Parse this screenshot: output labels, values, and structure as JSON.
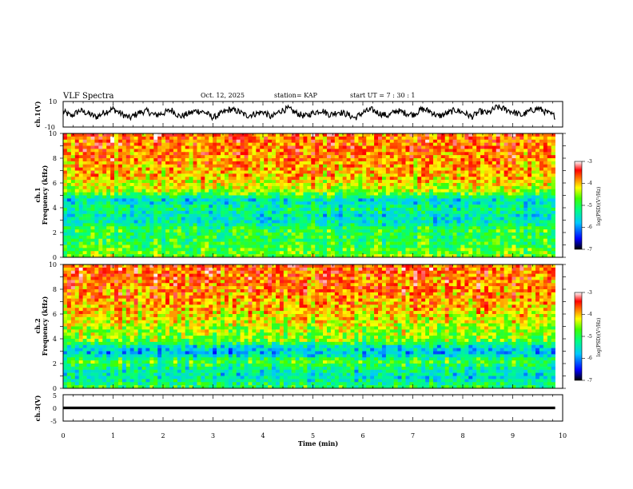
{
  "header": {
    "title": "VLF Spectra",
    "date": "Oct. 12, 2025",
    "station": "station= KAP",
    "start": "start  UT =   7 : 30 : 1"
  },
  "colors": {
    "trace": "#000000",
    "frame": "#000000",
    "colormap": [
      "#000000",
      "#0000ff",
      "#00c8ff",
      "#00ff80",
      "#40ff00",
      "#ffff00",
      "#ff8000",
      "#ff0000",
      "#ffffff"
    ]
  },
  "chart_data": [
    {
      "type": "line",
      "name": "ch1-waveform",
      "ylabel": "ch.1(V)",
      "ylim": [
        -10,
        10
      ],
      "yticks": [
        "10",
        "-10"
      ],
      "xlim": [
        0,
        10
      ],
      "sample_values": [
        2.1,
        -1.4,
        3.0,
        0.6,
        -2.2,
        1.8,
        4.1,
        0.2,
        -3.0,
        1.1,
        2.6,
        -0.8,
        0.9,
        3.4,
        -1.9,
        0.4,
        2.8,
        1.5,
        -2.6,
        0.7,
        3.8,
        2.2,
        -1.1,
        0.3,
        1.9,
        -2.4,
        2.5,
        4.4,
        0.8,
        -1.6,
        1.2,
        3.1,
        -0.5,
        2.0,
        0.1,
        -2.9,
        1.6,
        3.6,
        0.5,
        -1.2,
        2.9,
        1.0,
        -0.3,
        4.0,
        2.4,
        -1.7,
        0.6,
        3.3,
        1.4,
        -2.0,
        2.2,
        0.9,
        5.6,
        3.9,
        1.7,
        -0.9,
        2.7,
        4.6,
        1.3,
        -1.5
      ]
    },
    {
      "type": "heatmap",
      "name": "ch1-spectrogram",
      "ylabel_line1": "ch.1",
      "ylabel_line2": "Frequency (kHz)",
      "yticks": [
        "0",
        "2",
        "4",
        "6",
        "8",
        "10"
      ],
      "ylim": [
        0,
        10
      ],
      "xlim": [
        0,
        10
      ],
      "data_end_min": 9.85,
      "colorbar": {
        "label": "log(PSD)(V²/Hz)",
        "ticks": [
          "-3",
          "-4",
          "-5",
          "-6",
          "-7"
        ],
        "range": [
          -7,
          -3
        ]
      },
      "band_profile_freq_khz": [
        0.2,
        0.8,
        1.5,
        2.2,
        2.8,
        3.3,
        3.9,
        4.6,
        5.3,
        6.5,
        8.0,
        9.5
      ],
      "band_profile_logpsd": [
        -4.6,
        -4.8,
        -5.0,
        -4.9,
        -5.4,
        -5.5,
        -5.2,
        -5.6,
        -4.5,
        -4.0,
        -3.8,
        -3.7
      ]
    },
    {
      "type": "heatmap",
      "name": "ch2-spectrogram",
      "ylabel_line1": "ch.2",
      "ylabel_line2": "Frequency (kHz)",
      "yticks": [
        "0",
        "2",
        "4",
        "6",
        "8",
        "10"
      ],
      "ylim": [
        0,
        10
      ],
      "xlim": [
        0,
        10
      ],
      "data_end_min": 9.85,
      "colorbar": {
        "label": "log(PSD)(V²/Hz)",
        "ticks": [
          "-3",
          "-4",
          "-5",
          "-6",
          "-7"
        ],
        "range": [
          -7,
          -3
        ]
      },
      "band_profile_freq_khz": [
        0.2,
        0.8,
        1.5,
        2.2,
        2.8,
        3.3,
        3.9,
        4.6,
        5.3,
        6.5,
        8.0,
        9.5
      ],
      "band_profile_logpsd": [
        -5.0,
        -5.5,
        -5.4,
        -4.8,
        -5.8,
        -5.6,
        -4.6,
        -4.5,
        -4.3,
        -4.0,
        -3.8,
        -3.7
      ]
    },
    {
      "type": "line",
      "name": "ch3-waveform",
      "ylabel": "ch.3(V)",
      "ylim": [
        -5,
        5
      ],
      "yticks": [
        "5",
        "0",
        "-5"
      ],
      "xlim": [
        0,
        10
      ],
      "xlabel": "Time (min)",
      "xticks": [
        "0",
        "1",
        "2",
        "3",
        "4",
        "5",
        "6",
        "7",
        "8",
        "9",
        "10"
      ],
      "level_v": 0,
      "band_halfwidth_v": 0.5
    }
  ]
}
